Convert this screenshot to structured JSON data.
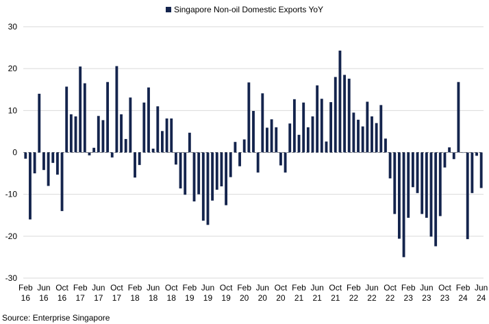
{
  "chart_data": {
    "type": "bar",
    "title": "",
    "xlabel": "",
    "ylabel": "",
    "ylim": [
      -30,
      30
    ],
    "yticks": [
      -30,
      -20,
      -10,
      0,
      10,
      20,
      30
    ],
    "grid": "horizontal",
    "legend_placement": "top-center",
    "bar_color": "#14244d",
    "x_tick_labels": [
      [
        "Feb",
        "16"
      ],
      [
        "Jun",
        "16"
      ],
      [
        "Oct",
        "16"
      ],
      [
        "Feb",
        "17"
      ],
      [
        "Jun",
        "17"
      ],
      [
        "Oct",
        "17"
      ],
      [
        "Feb",
        "18"
      ],
      [
        "Jun",
        "18"
      ],
      [
        "Oct",
        "18"
      ],
      [
        "Feb",
        "19"
      ],
      [
        "Jun",
        "19"
      ],
      [
        "Oct",
        "19"
      ],
      [
        "Feb",
        "20"
      ],
      [
        "Jun",
        "20"
      ],
      [
        "Oct",
        "20"
      ],
      [
        "Feb",
        "21"
      ],
      [
        "Jun",
        "21"
      ],
      [
        "Oct",
        "21"
      ],
      [
        "Feb",
        "22"
      ],
      [
        "Jun",
        "22"
      ],
      [
        "Oct",
        "22"
      ],
      [
        "Feb",
        "23"
      ],
      [
        "Jun",
        "23"
      ],
      [
        "Oct",
        "23"
      ],
      [
        "Feb",
        "24"
      ],
      [
        "Jun",
        "24"
      ]
    ],
    "series": [
      {
        "name": "Singapore Non-oil Domestic Exports YoY",
        "values": [
          -1.5,
          -16.0,
          -5.0,
          14.0,
          -4.2,
          -8.0,
          -2.5,
          -5.3,
          -14.0,
          15.7,
          9.1,
          8.6,
          20.5,
          16.5,
          -0.7,
          1.1,
          8.7,
          7.7,
          16.8,
          -1.2,
          20.6,
          9.1,
          3.2,
          13.1,
          -6.0,
          -3.0,
          11.9,
          15.5,
          0.9,
          11.0,
          5.1,
          8.1,
          8.1,
          -2.9,
          -8.6,
          -10.1,
          4.7,
          -11.7,
          -10.0,
          -16.3,
          -17.3,
          -11.5,
          -8.9,
          -8.1,
          -12.6,
          -5.9,
          2.5,
          -3.3,
          3.1,
          16.7,
          9.9,
          -4.8,
          14.1,
          5.9,
          7.9,
          6.0,
          -3.1,
          -4.8,
          6.9,
          12.7,
          4.2,
          11.9,
          6.0,
          8.6,
          16.0,
          12.8,
          2.6,
          12.0,
          18.0,
          24.3,
          18.5,
          17.6,
          9.5,
          7.8,
          6.2,
          12.1,
          8.6,
          7.0,
          11.3,
          3.3,
          -6.2,
          -14.7,
          -20.6,
          -25.0,
          -15.6,
          -8.3,
          -9.7,
          -14.7,
          -15.6,
          -20.1,
          -22.4,
          -15.2,
          -3.6,
          1.2,
          -1.6,
          16.8,
          -0.1,
          -20.7,
          -9.7,
          -0.8,
          -8.5
        ]
      }
    ]
  },
  "legend": {
    "label": "Singapore Non-oil Domestic Exports YoY"
  },
  "footer": {
    "source": "Source: Enterprise Singapore"
  }
}
